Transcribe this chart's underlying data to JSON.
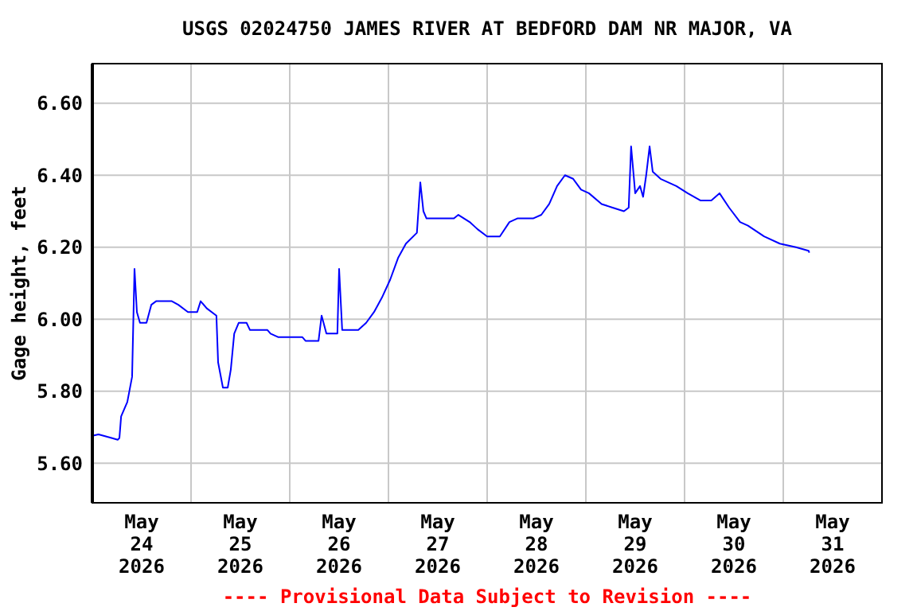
{
  "chart_data": {
    "type": "line",
    "title": "USGS 02024750 JAMES RIVER AT BEDFORD DAM NR MAJOR, VA",
    "ylabel": "Gage height, feet",
    "annotations": [
      "---- Provisional Data Subject to Revision ----"
    ],
    "x": [
      "2026-05-23T12:00",
      "2026-05-23T13:30",
      "2026-05-23T16:40",
      "2026-05-23T18:10",
      "2026-05-23T18:35",
      "2026-05-23T19:00",
      "2026-05-23T20:30",
      "2026-05-23T21:40",
      "2026-05-23T22:15",
      "2026-05-23T22:50",
      "2026-05-23T23:35",
      "2026-05-24T01:10",
      "2026-05-24T02:20",
      "2026-05-24T03:30",
      "2026-05-24T07:20",
      "2026-05-24T08:55",
      "2026-05-24T11:15",
      "2026-05-24T13:30",
      "2026-05-24T14:20",
      "2026-05-24T15:50",
      "2026-05-24T18:10",
      "2026-05-24T18:35",
      "2026-05-24T19:45",
      "2026-05-24T20:55",
      "2026-05-24T21:40",
      "2026-05-24T22:30",
      "2026-05-24T23:35",
      "2026-05-25T01:30",
      "2026-05-25T02:20",
      "2026-05-25T06:35",
      "2026-05-25T07:20",
      "2026-05-25T09:15",
      "2026-05-25T15:05",
      "2026-05-25T15:50",
      "2026-05-25T19:00",
      "2026-05-25T19:45",
      "2026-05-25T20:55",
      "2026-05-25T23:35",
      "2026-05-26T00:00",
      "2026-05-26T00:45",
      "2026-05-26T04:40",
      "2026-05-26T06:35",
      "2026-05-26T08:30",
      "2026-05-26T10:25",
      "2026-05-26T12:25",
      "2026-05-26T14:20",
      "2026-05-26T16:15",
      "2026-05-26T18:55",
      "2026-05-26T19:45",
      "2026-05-26T20:30",
      "2026-05-26T21:15",
      "2026-05-27T03:55",
      "2026-05-27T05:00",
      "2026-05-27T07:45",
      "2026-05-27T09:40",
      "2026-05-27T12:00",
      "2026-05-27T15:05",
      "2026-05-27T17:25",
      "2026-05-27T19:20",
      "2026-05-27T23:10",
      "2026-05-28T01:10",
      "2026-05-28T03:05",
      "2026-05-28T05:00",
      "2026-05-28T06:55",
      "2026-05-28T08:55",
      "2026-05-28T10:50",
      "2026-05-28T12:45",
      "2026-05-28T15:50",
      "2026-05-28T18:30",
      "2026-05-28T21:15",
      "2026-05-28T22:25",
      "2026-05-28T23:00",
      "2026-05-29T00:00",
      "2026-05-29T01:10",
      "2026-05-29T01:55",
      "2026-05-29T02:40",
      "2026-05-29T03:30",
      "2026-05-29T04:15",
      "2026-05-29T06:10",
      "2026-05-29T10:00",
      "2026-05-29T12:45",
      "2026-05-29T15:50",
      "2026-05-29T18:30",
      "2026-05-29T20:30",
      "2026-05-29T22:50",
      "2026-05-30T01:30",
      "2026-05-30T03:25",
      "2026-05-30T07:20",
      "2026-05-30T11:10",
      "2026-05-30T15:05",
      "2026-05-30T18:10",
      "2026-05-30T18:20"
    ],
    "series": [
      {
        "color": "#0000ff",
        "values": [
          5.676,
          5.68,
          5.67,
          5.665,
          5.67,
          5.73,
          5.77,
          5.84,
          6.14,
          6.02,
          5.99,
          5.99,
          6.04,
          6.05,
          6.05,
          6.04,
          6.02,
          6.02,
          6.05,
          6.03,
          6.01,
          5.88,
          5.81,
          5.81,
          5.86,
          5.96,
          5.99,
          5.99,
          5.97,
          5.97,
          5.96,
          5.95,
          5.95,
          5.94,
          5.94,
          6.01,
          5.96,
          5.96,
          6.14,
          5.97,
          5.97,
          5.99,
          6.02,
          6.06,
          6.11,
          6.17,
          6.21,
          6.24,
          6.38,
          6.3,
          6.28,
          6.28,
          6.29,
          6.27,
          6.25,
          6.23,
          6.23,
          6.27,
          6.28,
          6.28,
          6.29,
          6.32,
          6.37,
          6.4,
          6.39,
          6.36,
          6.35,
          6.32,
          6.31,
          6.3,
          6.31,
          6.48,
          6.35,
          6.37,
          6.34,
          6.4,
          6.48,
          6.41,
          6.39,
          6.37,
          6.35,
          6.33,
          6.33,
          6.35,
          6.31,
          6.27,
          6.26,
          6.23,
          6.21,
          6.2,
          6.19,
          6.185
        ]
      }
    ],
    "xlim": [
      "2026-05-23T12:00",
      "2026-05-31T12:00"
    ],
    "xticks": [
      {
        "value": "2026-05-24T00:00",
        "label": "May\n24\n2026"
      },
      {
        "value": "2026-05-24T12:00",
        "label": null
      },
      {
        "value": "2026-05-25T00:00",
        "label": "May\n25\n2026"
      },
      {
        "value": "2026-05-25T12:00",
        "label": null
      },
      {
        "value": "2026-05-26T00:00",
        "label": "May\n26\n2026"
      },
      {
        "value": "2026-05-26T12:00",
        "label": null
      },
      {
        "value": "2026-05-27T00:00",
        "label": "May\n27\n2026"
      },
      {
        "value": "2026-05-27T12:00",
        "label": null
      },
      {
        "value": "2026-05-28T00:00",
        "label": "May\n28\n2026"
      },
      {
        "value": "2026-05-28T12:00",
        "label": null
      },
      {
        "value": "2026-05-29T00:00",
        "label": "May\n29\n2026"
      },
      {
        "value": "2026-05-29T12:00",
        "label": null
      },
      {
        "value": "2026-05-30T00:00",
        "label": "May\n30\n2026"
      },
      {
        "value": "2026-05-30T12:00",
        "label": null
      },
      {
        "value": "2026-05-31T00:00",
        "label": "May\n31\n2026"
      }
    ],
    "ylim": [
      5.49,
      6.71
    ],
    "yticks": [
      {
        "value": 5.6,
        "label": "5.60"
      },
      {
        "value": 5.8,
        "label": "5.80"
      },
      {
        "value": 6.0,
        "label": "6.00"
      },
      {
        "value": 6.2,
        "label": "6.20"
      },
      {
        "value": 6.4,
        "label": "6.40"
      },
      {
        "value": 6.6,
        "label": "6.60"
      }
    ],
    "grid": true,
    "line_style": "solid",
    "marker": "none"
  }
}
